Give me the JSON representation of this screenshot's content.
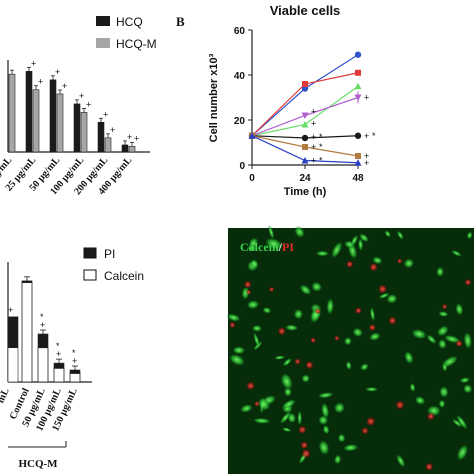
{
  "chart_data": [
    {
      "type": "bar",
      "panel": "",
      "title": "",
      "xlabel": "",
      "ylabel": "",
      "categories": [
        "",
        "25 µg/mL",
        "50 µg/mL",
        "100 µg/mL",
        "200 µg/mL",
        "400 µg/mL"
      ],
      "visible_tick_fragments": [
        "µg/mL"
      ],
      "ylim": [
        0,
        65
      ],
      "series": [
        {
          "name": "HCQ",
          "color": "#1a1a1a",
          "values": [
            58,
            57,
            51,
            34,
            21,
            5
          ]
        },
        {
          "name": "HCQ-M",
          "color": "#a6a6a6",
          "values": [
            55,
            44,
            41,
            28,
            10,
            4
          ]
        }
      ],
      "annotations": [
        "+",
        "+",
        "+",
        "+",
        "+",
        "+",
        "+",
        "+",
        "*",
        "+",
        "+",
        "*"
      ],
      "legend_position": "top-right"
    },
    {
      "type": "line",
      "panel": "B",
      "title": "Viable cells",
      "xlabel": "Time (h)",
      "ylabel": "Cell number x10³",
      "x": [
        0,
        24,
        48
      ],
      "xticks": [
        "0",
        "24",
        "48"
      ],
      "yticks": [
        "0",
        "20",
        "40",
        "60"
      ],
      "ylim": [
        0,
        60
      ],
      "series": [
        {
          "color": "#3355cc",
          "marker": "circle",
          "values": [
            13,
            34,
            49
          ]
        },
        {
          "color": "#e03a3a",
          "marker": "square",
          "values": [
            13,
            36,
            41
          ]
        },
        {
          "color": "#66dd66",
          "marker": "triangle",
          "values": [
            13,
            18,
            35
          ]
        },
        {
          "color": "#b25fd0",
          "marker": "triangle-down",
          "values": [
            13,
            22,
            30
          ]
        },
        {
          "color": "#1a1a1a",
          "marker": "circle",
          "values": [
            13,
            12,
            13
          ]
        },
        {
          "color": "#b07a40",
          "marker": "square",
          "values": [
            13,
            8,
            4
          ]
        },
        {
          "color": "#2a40c0",
          "marker": "triangle",
          "values": [
            13,
            2,
            1
          ]
        }
      ],
      "annotations": [
        "+",
        "+",
        "+",
        "*",
        "+",
        "*",
        "+",
        "*",
        "+",
        "+",
        "+",
        "+",
        "+"
      ]
    },
    {
      "type": "bar",
      "panel": "",
      "title": "",
      "xlabel": "",
      "ylabel": "",
      "categories": [
        "Control",
        "50 µg/mL",
        "100 µg/mL",
        "150 µg/mL"
      ],
      "visible_tick_fragments": [
        "mL"
      ],
      "group_label": "HCQ-M",
      "ylim": [
        0,
        70
      ],
      "series": [
        {
          "name": "PI",
          "color": "#1a1a1a",
          "values": [
            1,
            8,
            3,
            2
          ]
        },
        {
          "name": "Calcein",
          "color": "#ffffff",
          "values": [
            58,
            20,
            8,
            5
          ]
        }
      ],
      "annotations": [
        "+",
        "*",
        "+",
        "*",
        "+",
        "*",
        "+"
      ],
      "legend_position": "top-right"
    }
  ],
  "micrograph": {
    "label_green": "Calcein",
    "label_sep": "/",
    "label_red": "PI",
    "green": "#2ec23a",
    "red": "#d21e1e"
  }
}
